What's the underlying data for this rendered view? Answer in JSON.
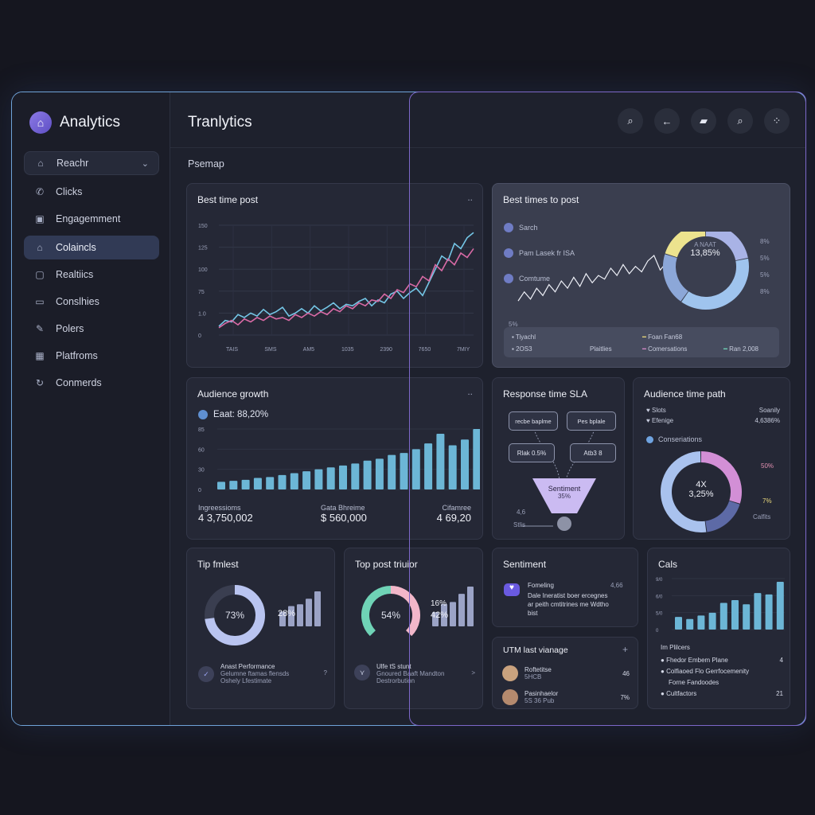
{
  "app": {
    "brand": "Analytics",
    "title": "Tranlytics",
    "section": "Psemap"
  },
  "colors": {
    "accent": "#8c7ae6",
    "line_blue": "#74c6e6",
    "line_pink": "#d86aa5",
    "bar": "#6cb6d6"
  },
  "sidebar": {
    "dropdown": {
      "label": "Reachr",
      "icon": "house-icon"
    },
    "items": [
      {
        "label": "Clicks",
        "icon": "phone-icon"
      },
      {
        "label": "Engagemment",
        "icon": "image-icon"
      },
      {
        "label": "Colaincls",
        "icon": "building-icon",
        "active": true
      },
      {
        "label": "Realtiics",
        "icon": "square-icon"
      },
      {
        "label": "Conslhies",
        "icon": "folder-icon"
      },
      {
        "label": "Polers",
        "icon": "pen-icon"
      },
      {
        "label": "Platfroms",
        "icon": "grid-icon"
      },
      {
        "label": "Conmerds",
        "icon": "refresh-icon"
      }
    ]
  },
  "topbar_icons": [
    "search-icon",
    "arrow-left-icon",
    "book-icon",
    "search-icon",
    "grid-icon"
  ],
  "cards": {
    "best_time_post": {
      "title": "Best time post",
      "more": "..",
      "y_ticks": [
        "150",
        "125",
        "100",
        "75",
        "1.0",
        "0"
      ],
      "x_ticks": [
        "TAIS",
        "SMS",
        "AM5",
        "1035",
        "2390",
        "7650",
        "7MIY"
      ],
      "chart_data": {
        "type": "line",
        "x": [
          0,
          1,
          2,
          3,
          4,
          5,
          6,
          7,
          8,
          9,
          10,
          11,
          12,
          13,
          14,
          15,
          16,
          17,
          18,
          19,
          20,
          21,
          22,
          23,
          24,
          25,
          26,
          27,
          28,
          29,
          30,
          31,
          32,
          33,
          34,
          35,
          36,
          37,
          38,
          39,
          40
        ],
        "series": [
          {
            "values": [
              12,
              20,
              18,
              28,
              24,
              30,
              26,
              35,
              28,
              32,
              38,
              26,
              30,
              36,
              30,
              40,
              33,
              38,
              44,
              36,
              42,
              40,
              46,
              50,
              40,
              48,
              44,
              56,
              60,
              50,
              58,
              64,
              54,
              72,
              90,
              108,
              102,
              125,
              118,
              133,
              140
            ]
          },
          {
            "values": [
              10,
              16,
              20,
              14,
              22,
              18,
              24,
              20,
              26,
              22,
              24,
              20,
              28,
              24,
              30,
              26,
              32,
              28,
              36,
              32,
              40,
              36,
              44,
              40,
              48,
              46,
              56,
              50,
              62,
              58,
              70,
              66,
              80,
              74,
              96,
              88,
              104,
              96,
              112,
              106,
              118
            ]
          }
        ],
        "ylim": [
          0,
          150
        ]
      }
    },
    "best_times_to_post": {
      "title": "Best times to post",
      "items": [
        {
          "label": "Sarch",
          "icon": "check-icon"
        },
        {
          "label": "Pam Lasek fr ISA",
          "icon": "check-icon"
        },
        {
          "label": "Comtume",
          "icon": "check-icon"
        }
      ],
      "y_tick": "5%",
      "donut_center": {
        "line1": "A NAAT",
        "line2": "13,85%"
      },
      "donut_legend": [
        "8%",
        "5%",
        "5%",
        "8%"
      ],
      "chart_data": [
        {
          "type": "line",
          "values": [
            20,
            30,
            22,
            34,
            26,
            38,
            30,
            42,
            34,
            46,
            36,
            50,
            40,
            48,
            44,
            56,
            48,
            60,
            50,
            58,
            52,
            64,
            70,
            54,
            62,
            58
          ]
        },
        {
          "type": "pie",
          "values": [
            22,
            38,
            20,
            20
          ]
        }
      ],
      "legend": [
        {
          "label": "Tiyachl",
          "value": "2OS3"
        },
        {
          "label": "Plaitlies",
          "value": ""
        },
        {
          "label": "Foan Fan68",
          "value": "Comersations"
        },
        {
          "label": "Ran 2,008",
          "value": ""
        }
      ]
    },
    "audience_growth": {
      "title": "Audience growth",
      "more": "..",
      "badge": "Eaat: 88,20%",
      "y_ticks": [
        "85",
        "60",
        "30",
        "0"
      ],
      "chart_data": {
        "type": "bar",
        "values": [
          8,
          9,
          10,
          12,
          13,
          15,
          17,
          19,
          21,
          23,
          25,
          27,
          30,
          32,
          36,
          38,
          42,
          48,
          58,
          46,
          52,
          63
        ]
      },
      "stats": [
        {
          "label": "Ingreessioms",
          "value": "4 3,750,002"
        },
        {
          "label": "Gata Bhreime",
          "value": "$ 560,000"
        },
        {
          "label": "Cifamree",
          "value": "4 69,20"
        }
      ]
    },
    "response_time": {
      "title": "Response time SLA",
      "nodes": [
        "recbe baplme",
        "Pes bplale",
        "Rlak 0.5%",
        "Atb3 8"
      ],
      "funnel": {
        "label": "Sentiment",
        "value": "35%"
      },
      "foot": [
        "4,6",
        "Stlis"
      ]
    },
    "audience_time_path": {
      "title": "Audience time path",
      "rows": [
        {
          "label": "Slots",
          "value": "Soanily"
        },
        {
          "label": "Efenige",
          "value": "4,6386%"
        }
      ],
      "sub": "Conseriations",
      "center": {
        "line1": "4X",
        "line2": "3,25%"
      },
      "callouts": [
        {
          "label": "50%"
        },
        {
          "label": "7%"
        },
        {
          "label": "Calfits"
        }
      ],
      "chart_data": {
        "type": "pie",
        "values": [
          30,
          18,
          52
        ]
      }
    },
    "tip_fastest": {
      "title": "Tip fmlest",
      "gauge": "73%",
      "bars_label": "28%",
      "chart_data": {
        "type": "bar",
        "values": [
          40,
          55,
          60,
          75,
          95
        ]
      },
      "footer": {
        "line1": "Anast Performance",
        "line2": "Gelumne ftamas flensds",
        "line3": "Oshely Lfestimate",
        "arrow": "?"
      }
    },
    "top_post": {
      "title": "Top post triuior",
      "gauge": "54%",
      "bars_label": "42%",
      "bars_label2": "16%",
      "chart_data": {
        "type": "bar",
        "values": [
          35,
          55,
          60,
          80,
          98
        ]
      },
      "footer": {
        "line1": "Ulfe tS stunt",
        "line2": "Gnoured Baaft Mandton",
        "line3": "Destrorbution",
        "arrow": ">"
      }
    },
    "sentiment": {
      "title": "Sentiment",
      "row": {
        "label": "Fomeling",
        "value": "4,66"
      },
      "text": [
        "Dale Ineratist boer ercegnes",
        "ar peith cmtitrines me Wdtho",
        "bist"
      ]
    },
    "utm_list": {
      "title": "UTM last vianage",
      "more": "+",
      "rows": [
        {
          "name": "Roftetitse",
          "sub": "5HCB",
          "value": "46"
        },
        {
          "name": "Pasinhaelor",
          "sub": "5S 36 Pub",
          "value": "7%"
        }
      ]
    },
    "cals": {
      "title": "Cals",
      "y_ticks": [
        "9/0",
        "6/0",
        "5/0",
        "0"
      ],
      "chart_data": {
        "type": "bar",
        "values": [
          18,
          15,
          20,
          24,
          38,
          42,
          36,
          52,
          50,
          68
        ]
      },
      "sub": "Im Plilcers",
      "rows": [
        {
          "label": "Fhedor Embem Plane",
          "value": "4"
        },
        {
          "label": "Colfiaoed Flo Gerrfocemenity",
          "value": ""
        },
        {
          "label": "Forne Fandoodes",
          "value": ""
        },
        {
          "label": "Cultfactors",
          "value": "21"
        }
      ]
    }
  }
}
